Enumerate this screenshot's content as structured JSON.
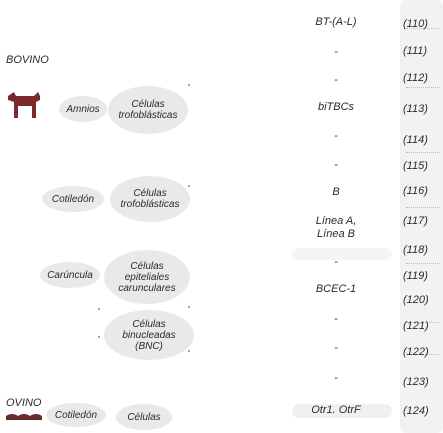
{
  "species": {
    "top": "BOVINO",
    "bottom": "OVINO"
  },
  "tissues": {
    "amnios": "Amnios",
    "cotiledon": "Cotiledón",
    "carincula": "Carúncula",
    "cotiledon_bottom": "Cotiledón"
  },
  "cells": {
    "trof1": {
      "line1": "Células",
      "line2": "trofoblásticas"
    },
    "trof2": {
      "line1": "Células",
      "line2": "trofoblásticas"
    },
    "epit": {
      "line1": "Células",
      "line2": "epiteliales",
      "line3": "carunculares"
    },
    "binuc": {
      "line1": "Células",
      "line2": "binucleadas",
      "line3": "(BNC)"
    },
    "bottom": {
      "line1": "Células"
    }
  },
  "genes": {
    "g1": "BT-(A-L)",
    "d1": "-",
    "d2": "-",
    "g2": "biTBCs",
    "d3": "-",
    "d4": "-",
    "g3": "B",
    "g4a": "Línea A,",
    "g4b": "Línea B",
    "d5": "-",
    "g5": "BCEC-1",
    "d6": "-",
    "d7": "-",
    "d8": "-",
    "g6": "Otr1. OtrF"
  },
  "refs": [
    "(110)",
    "(111)",
    "(112)",
    "(113)",
    "(114)",
    "(115)",
    "(116)",
    "(117)",
    "(118)",
    "(119)",
    "(120)",
    "(121)",
    "(122)",
    "(123)",
    "(124)"
  ],
  "icons": {
    "cow": "cow-silhouette-icon",
    "sheep": "sheep-silhouette-icon"
  }
}
